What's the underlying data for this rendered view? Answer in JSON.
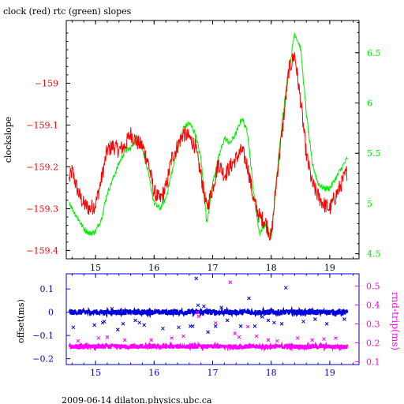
{
  "chart_data": [
    {
      "type": "line",
      "title": "clock (red) rtc (green) slopes",
      "xlabel": "",
      "ylabel": "clockslope",
      "y2label": "",
      "xlim": [
        14.5,
        19.5
      ],
      "ylim": [
        -159.42,
        -158.85
      ],
      "y2lim": [
        4.45,
        6.82
      ],
      "x_ticks": [
        "15",
        "16",
        "17",
        "18",
        "19"
      ],
      "y_ticks": [
        "-159",
        "-159.1",
        "-159.2",
        "-159.3",
        "-159.4"
      ],
      "y2_ticks": [
        "6.5",
        "6",
        "5.5",
        "5",
        "4.5"
      ],
      "grid": false,
      "series": [
        {
          "name": "clock",
          "axis": "left",
          "color": "#ff0000",
          "x": [
            14.55,
            14.6,
            14.7,
            14.8,
            14.9,
            15.0,
            15.1,
            15.2,
            15.3,
            15.4,
            15.5,
            15.6,
            15.7,
            15.8,
            15.9,
            16.0,
            16.1,
            16.2,
            16.3,
            16.4,
            16.5,
            16.6,
            16.7,
            16.8,
            16.9,
            17.0,
            17.1,
            17.2,
            17.3,
            17.4,
            17.5,
            17.6,
            17.7,
            17.8,
            17.9,
            18.0,
            18.1,
            18.2,
            18.3,
            18.4,
            18.5,
            18.6,
            18.7,
            18.8,
            18.9,
            19.0,
            19.1,
            19.2,
            19.3
          ],
          "y": [
            -159.23,
            -159.21,
            -159.26,
            -159.29,
            -159.3,
            -159.29,
            -159.23,
            -159.16,
            -159.15,
            -159.16,
            -159.15,
            -159.12,
            -159.14,
            -159.15,
            -159.19,
            -159.26,
            -159.28,
            -159.25,
            -159.18,
            -159.15,
            -159.12,
            -159.13,
            -159.15,
            -159.22,
            -159.3,
            -159.25,
            -159.19,
            -159.22,
            -159.2,
            -159.18,
            -159.16,
            -159.2,
            -159.28,
            -159.32,
            -159.33,
            -159.37,
            -159.22,
            -159.1,
            -158.97,
            -158.93,
            -159.04,
            -159.17,
            -159.24,
            -159.27,
            -159.29,
            -159.3,
            -159.27,
            -159.24,
            -159.21
          ]
        },
        {
          "name": "rtc",
          "axis": "right",
          "color": "#00ee00",
          "x": [
            14.55,
            14.6,
            14.7,
            14.8,
            14.9,
            15.0,
            15.1,
            15.2,
            15.3,
            15.4,
            15.5,
            15.6,
            15.7,
            15.8,
            15.9,
            16.0,
            16.1,
            16.2,
            16.3,
            16.4,
            16.5,
            16.6,
            16.7,
            16.8,
            16.9,
            17.0,
            17.1,
            17.2,
            17.3,
            17.4,
            17.5,
            17.6,
            17.7,
            17.8,
            17.9,
            18.0,
            18.1,
            18.2,
            18.3,
            18.4,
            18.5,
            18.6,
            18.7,
            18.8,
            18.9,
            19.0,
            19.1,
            19.2,
            19.3
          ],
          "y": [
            5.02,
            4.95,
            4.85,
            4.75,
            4.7,
            4.72,
            4.85,
            5.1,
            5.25,
            5.4,
            5.52,
            5.55,
            5.65,
            5.55,
            5.3,
            5.0,
            4.95,
            5.05,
            5.3,
            5.55,
            5.75,
            5.8,
            5.7,
            5.45,
            4.8,
            5.2,
            5.45,
            5.65,
            5.6,
            5.7,
            5.85,
            5.7,
            5.1,
            4.7,
            4.8,
            4.65,
            5.3,
            5.9,
            6.3,
            6.7,
            6.55,
            5.9,
            5.4,
            5.2,
            5.15,
            5.15,
            5.25,
            5.35,
            5.45
          ]
        }
      ]
    },
    {
      "type": "scatter",
      "title": "",
      "xlabel": "",
      "ylabel": "offset(ms)",
      "y2label": "rnd-trip(ms)",
      "xlim": [
        14.5,
        19.5
      ],
      "ylim": [
        -0.225,
        0.165
      ],
      "y2lim": [
        0.085,
        0.565
      ],
      "x_ticks": [
        "15",
        "16",
        "17",
        "18",
        "19"
      ],
      "y_ticks": [
        "0.1",
        "0",
        "-0.1",
        "-0.2"
      ],
      "y2_ticks": [
        "0.5",
        "0.4",
        "0.3",
        "0.2",
        "0.1"
      ],
      "grid": false,
      "series": [
        {
          "name": "offset",
          "axis": "left",
          "color": "#0000dd",
          "band_center": 0.0,
          "band_halfwidth": 0.012,
          "outliers_x": [
            14.61,
            14.62,
            14.98,
            15.12,
            15.15,
            15.28,
            15.38,
            15.47,
            15.68,
            15.75,
            15.83,
            16.15,
            16.42,
            16.62,
            16.66,
            16.72,
            16.75,
            16.85,
            16.92,
            17.05,
            17.15,
            17.25,
            17.48,
            17.62,
            17.72,
            17.85,
            17.95,
            18.05,
            18.18,
            18.25,
            18.55,
            18.75,
            18.95,
            19.25
          ],
          "outliers_y": [
            0.0,
            -0.065,
            -0.055,
            -0.045,
            -0.04,
            0.015,
            -0.075,
            -0.05,
            -0.035,
            -0.045,
            -0.055,
            -0.07,
            -0.065,
            -0.06,
            -0.06,
            0.145,
            0.03,
            0.025,
            -0.085,
            -0.06,
            0.02,
            -0.035,
            -0.06,
            0.06,
            -0.06,
            -0.02,
            -0.035,
            -0.045,
            -0.05,
            0.105,
            -0.04,
            -0.03,
            -0.05,
            -0.03
          ]
        },
        {
          "name": "rnd-trip",
          "axis": "right",
          "color": "#ff00ff",
          "band_center": 0.18,
          "band_halfwidth": 0.012,
          "outliers_x": [
            14.7,
            15.05,
            15.2,
            15.5,
            15.95,
            16.3,
            16.5,
            16.74,
            16.76,
            17.05,
            17.3,
            17.38,
            17.45,
            17.6,
            17.75,
            17.95,
            18.1,
            18.45,
            18.7,
            18.9,
            19.1
          ],
          "outliers_y": [
            0.21,
            0.225,
            0.23,
            0.215,
            0.215,
            0.225,
            0.235,
            0.36,
            0.34,
            0.305,
            0.52,
            0.25,
            0.23,
            0.285,
            0.235,
            0.215,
            0.21,
            0.225,
            0.215,
            0.22,
            0.225
          ]
        }
      ]
    }
  ],
  "footer": "2009-06-14  dilaton.physics.ubc.ca",
  "colors": {
    "clock": "#ff0000",
    "rtc": "#00ee00",
    "offset": "#0000dd",
    "rndtrip": "#ff00ff",
    "axis_top": "#000000",
    "axis_bottom": "#0000cc"
  }
}
